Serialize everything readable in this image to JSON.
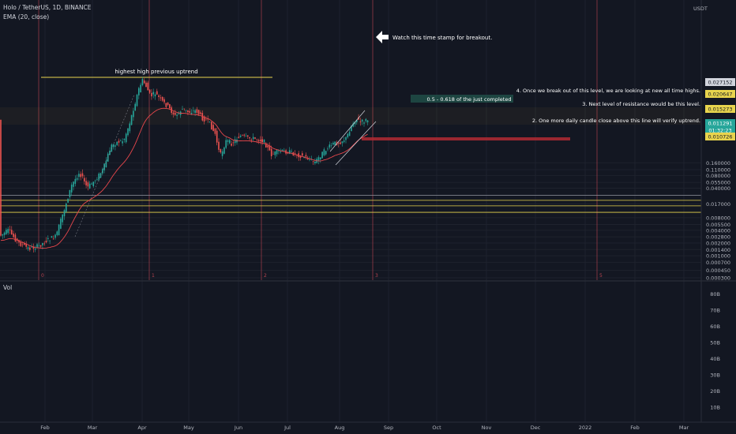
{
  "header": {
    "symbol": "Holo / TetherUS, 1D, BINANCE",
    "indicator": "EMA (20, close)",
    "currency": "USDT",
    "vol_label": "Vol"
  },
  "annotations": {
    "breakout_note": "Watch this time stamp for breakout.",
    "highest_high": "highest high previous uptrend",
    "fib_box": "0.5 - 0.618 of the just completed",
    "note_4": "4. Once we break out of this level, we are looking at new all time highs.",
    "note_3": "3. Next level of resistance would be this level.",
    "note_2": "2. One more daily candle close above this line will verify uptrend."
  },
  "chart_data": {
    "type": "candlestick",
    "x_axis_labels": [
      "Feb",
      "Mar",
      "Apr",
      "May",
      "Jun",
      "Jul",
      "Aug",
      "Sep",
      "Oct",
      "Nov",
      "Dec",
      "2022",
      "Feb",
      "Mar"
    ],
    "y_axis_ticks": [
      "0.160000",
      "0.110000",
      "0.080000",
      "0.055000",
      "0.040000",
      "0.017000",
      "0.008000",
      "0.005500",
      "0.004000",
      "0.002800",
      "0.002000",
      "0.001400",
      "0.001000",
      "0.000700",
      "0.000450",
      "0.000300"
    ],
    "price_tags": [
      {
        "value": "0.027152",
        "kind": "level"
      },
      {
        "value": "0.020647",
        "kind": "level-yellow"
      },
      {
        "value": "0.015273",
        "kind": "level-yellow"
      },
      {
        "value": "0.011291",
        "kind": "last-price"
      },
      {
        "value": "01:32:23",
        "kind": "countdown"
      },
      {
        "value": "0.010726",
        "kind": "level-yellow"
      }
    ],
    "vertical_markers": [
      "0",
      "1",
      "2",
      "3",
      "5"
    ],
    "volume_axis": [
      "80B",
      "70B",
      "60B",
      "50B",
      "40B",
      "30B",
      "20B",
      "10B"
    ],
    "series": [
      {
        "name": "EMA (20, close)",
        "color": "#e8474c"
      }
    ],
    "colors": {
      "up": "#26a69a",
      "down": "#ef5350",
      "level_yellow": "#e8d44d",
      "background": "#131722"
    }
  }
}
